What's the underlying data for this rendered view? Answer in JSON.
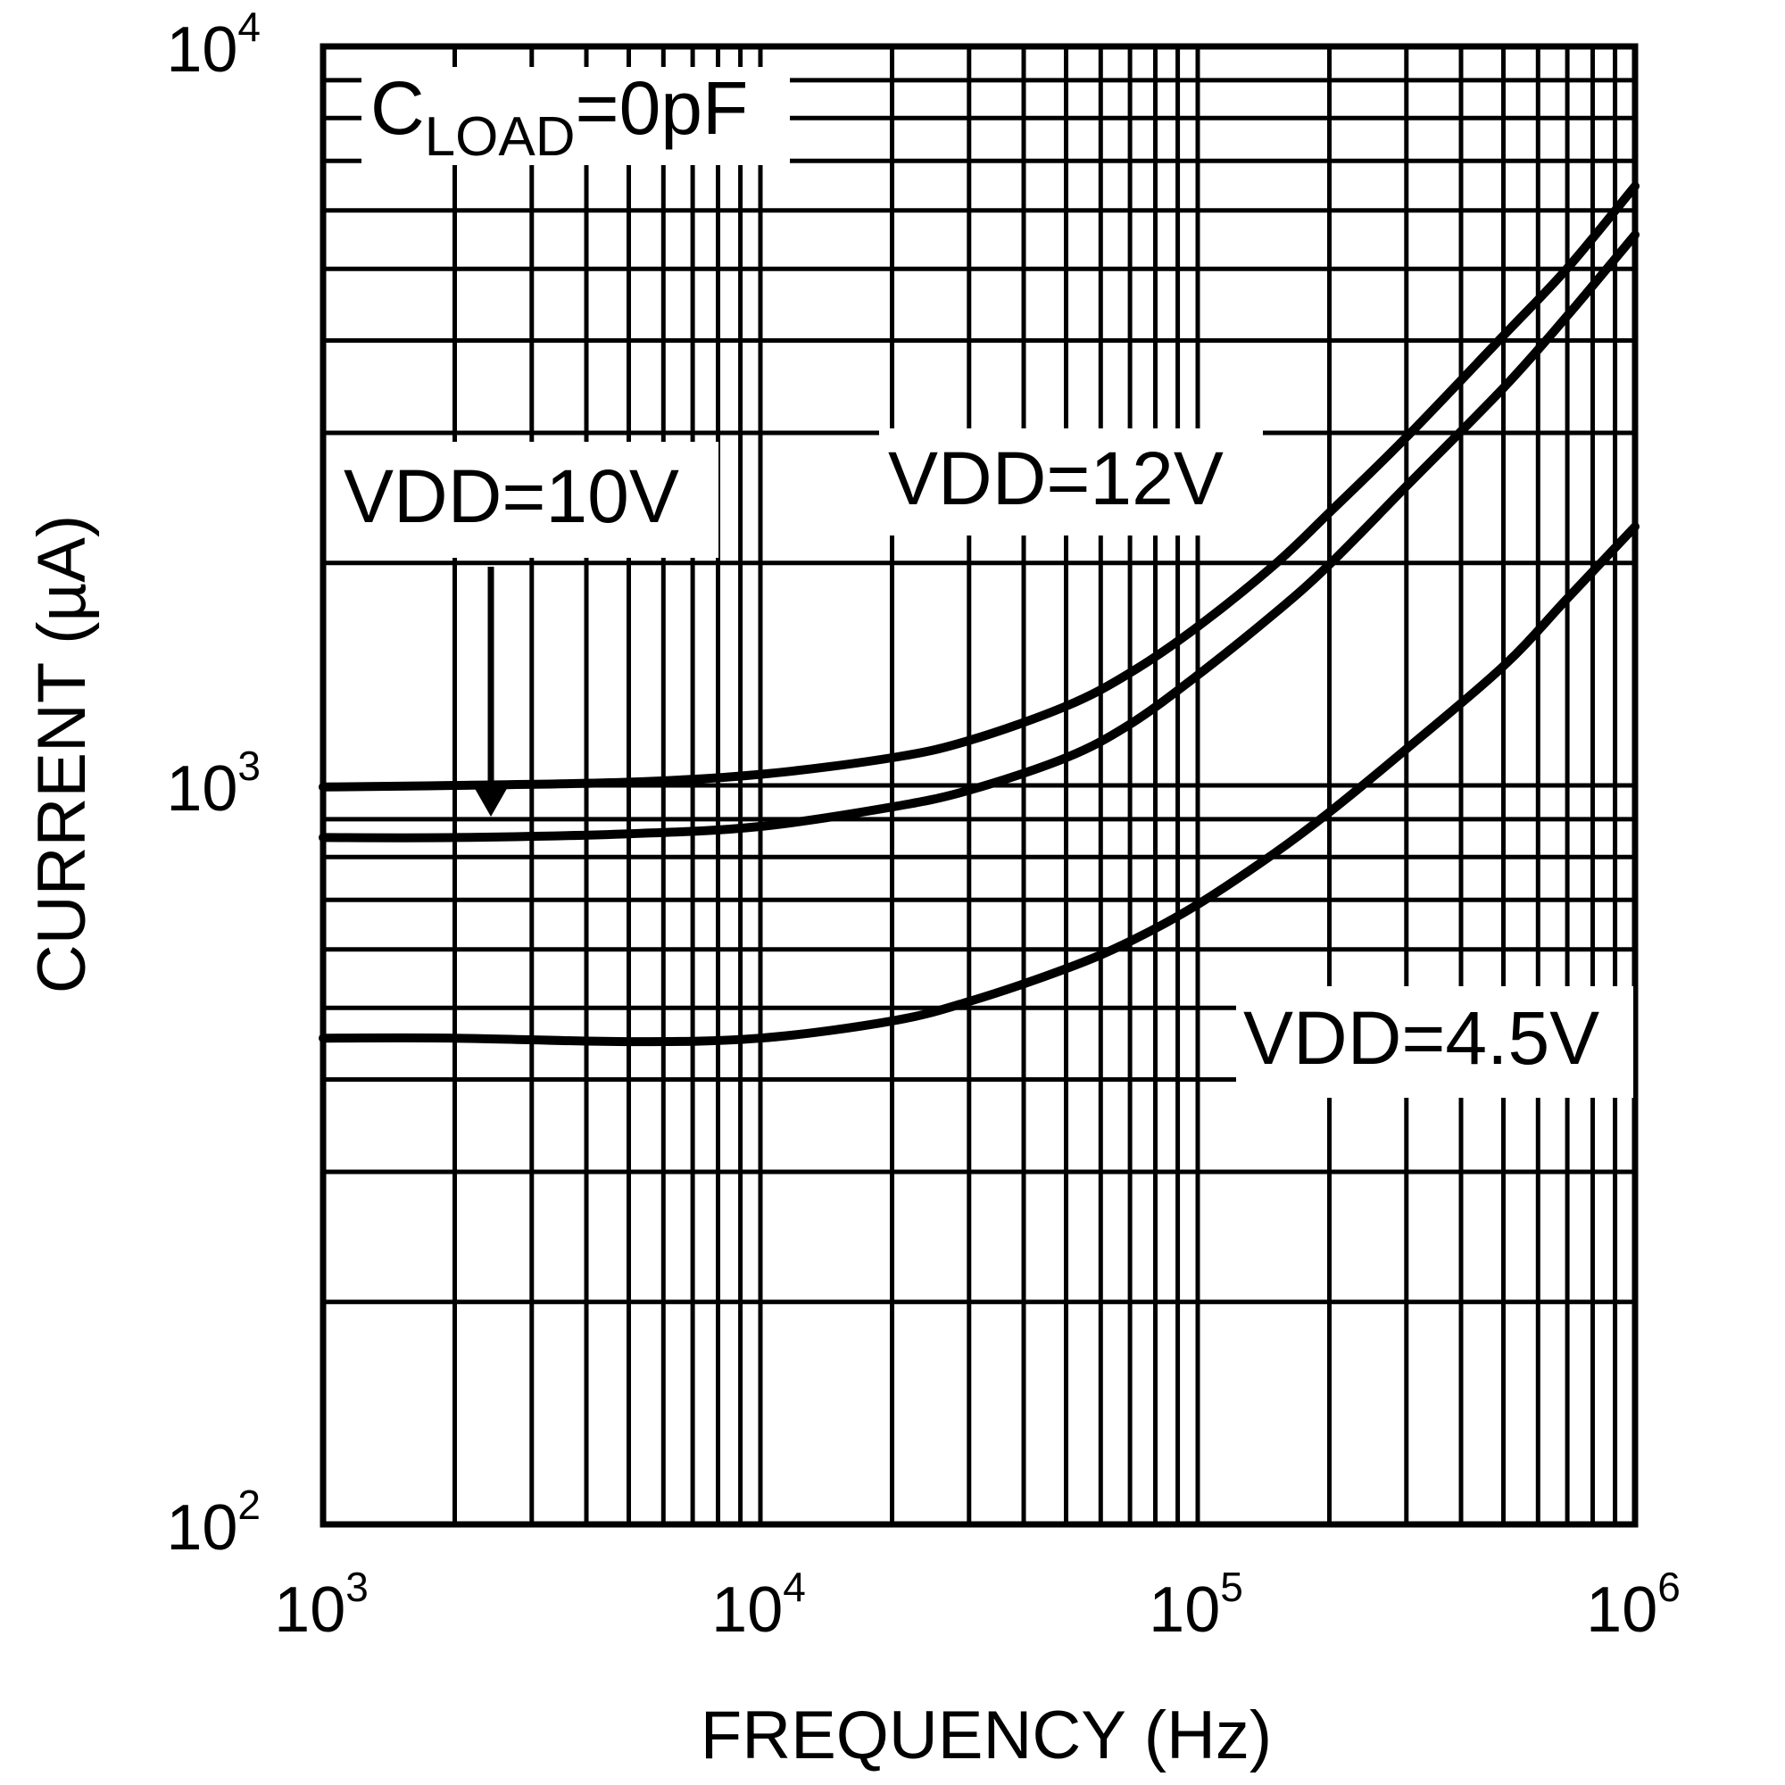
{
  "chart_data": {
    "type": "line",
    "xscale": "log",
    "yscale": "log",
    "xlabel": "FREQUENCY (Hz)",
    "ylabel": "CURRENT (µA)",
    "xlim": [
      1000,
      1000000
    ],
    "ylim": [
      100,
      10000
    ],
    "grid": true,
    "x_ticks": [
      {
        "base": "10",
        "exp": "3"
      },
      {
        "base": "10",
        "exp": "4"
      },
      {
        "base": "10",
        "exp": "5"
      },
      {
        "base": "10",
        "exp": "6"
      }
    ],
    "y_ticks": [
      {
        "base": "10",
        "exp": "2",
        "value": 100
      },
      {
        "base": "10",
        "exp": "3",
        "value": 1000
      },
      {
        "base": "10",
        "exp": "4",
        "value": 10000
      }
    ],
    "annotation": {
      "main": "C",
      "sub": "LOAD",
      "rest": "=0pF"
    },
    "series": [
      {
        "name": "VDD=12V",
        "x": [
          1000,
          2000,
          5000,
          10000,
          20000,
          30000,
          50000,
          70000,
          100000,
          150000,
          200000,
          300000,
          500000,
          700000,
          1000000
        ],
        "y": [
          995,
          1000,
          1010,
          1035,
          1090,
          1150,
          1280,
          1420,
          1640,
          1990,
          2340,
          2960,
          4060,
          5010,
          6470
        ]
      },
      {
        "name": "VDD=10V",
        "x": [
          1000,
          2000,
          5000,
          10000,
          20000,
          30000,
          50000,
          70000,
          100000,
          150000,
          200000,
          300000,
          500000,
          700000,
          1000000
        ],
        "y": [
          850,
          850,
          860,
          880,
          935,
          985,
          1090,
          1210,
          1410,
          1710,
          1990,
          2540,
          3450,
          4320,
          5560
        ]
      },
      {
        "name": "VDD=4.5V",
        "x": [
          1000,
          2000,
          5000,
          10000,
          20000,
          30000,
          50000,
          70000,
          100000,
          150000,
          200000,
          300000,
          500000,
          700000,
          1000000
        ],
        "y": [
          455,
          455,
          450,
          455,
          480,
          510,
          565,
          615,
          690,
          810,
          920,
          1120,
          1450,
          1790,
          2240
        ]
      }
    ],
    "labels": {
      "vdd10": "VDD=10V",
      "vdd12": "VDD=12V",
      "vdd45": "VDD=4.5V"
    }
  }
}
